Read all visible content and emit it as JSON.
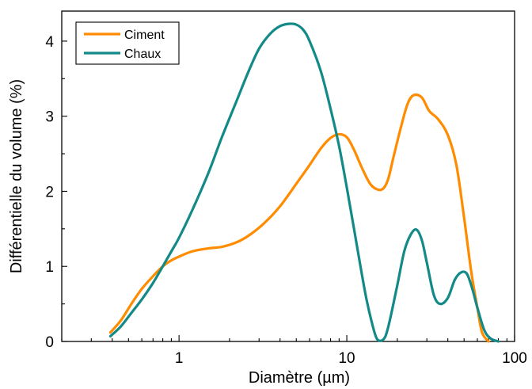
{
  "chart_data": {
    "type": "line",
    "xscale": "log",
    "xlabel": "Diamètre (µm)",
    "ylabel": "Différentielle du volume (%)",
    "xlim": [
      0.2,
      100
    ],
    "ylim": [
      0,
      4.4
    ],
    "xticks": [
      1,
      10,
      100
    ],
    "xtick_labels": [
      "1",
      "10",
      "100"
    ],
    "yticks": [
      0,
      1,
      2,
      3,
      4
    ],
    "ytick_labels": [
      "0",
      "1",
      "2",
      "3",
      "4"
    ],
    "legend_position": "top-left",
    "grid": false,
    "series": [
      {
        "name": "Ciment",
        "color": "#ff8c00",
        "x": [
          0.39,
          0.45,
          0.52,
          0.6,
          0.7,
          0.8,
          0.9,
          1.0,
          1.2,
          1.5,
          1.8,
          2.2,
          2.6,
          3.2,
          4.0,
          5.0,
          6.0,
          7.0,
          8.0,
          9.0,
          10.0,
          11.0,
          12.5,
          14.0,
          16.0,
          17.5,
          19.0,
          21.0,
          23.0,
          25.0,
          28.0,
          31.0,
          35.0,
          40.0,
          45.0,
          50.0,
          55.0,
          60.0,
          64.0,
          70.0
        ],
        "y": [
          0.12,
          0.28,
          0.5,
          0.7,
          0.87,
          1.0,
          1.08,
          1.13,
          1.2,
          1.24,
          1.26,
          1.32,
          1.41,
          1.57,
          1.8,
          2.1,
          2.35,
          2.57,
          2.71,
          2.76,
          2.72,
          2.56,
          2.28,
          2.08,
          2.02,
          2.14,
          2.46,
          2.85,
          3.16,
          3.28,
          3.25,
          3.07,
          2.96,
          2.75,
          2.35,
          1.65,
          0.95,
          0.45,
          0.12,
          0.0
        ]
      },
      {
        "name": "Chaux",
        "color": "#138a87",
        "x": [
          0.39,
          0.45,
          0.52,
          0.6,
          0.7,
          0.8,
          0.9,
          1.0,
          1.2,
          1.5,
          1.8,
          2.2,
          2.6,
          3.0,
          3.5,
          4.0,
          4.5,
          5.0,
          5.5,
          6.0,
          7.0,
          8.0,
          9.0,
          10.0,
          11.0,
          12.0,
          13.0,
          14.0,
          15.0,
          16.0,
          17.0,
          18.0,
          20.0,
          22.0,
          24.0,
          26.0,
          28.0,
          30.0,
          33.0,
          36.0,
          40.0,
          44.0,
          48.0,
          52.0,
          56.0,
          60.0,
          66.0,
          72.0,
          80.0
        ],
        "y": [
          0.07,
          0.2,
          0.38,
          0.56,
          0.78,
          1.0,
          1.2,
          1.38,
          1.75,
          2.25,
          2.72,
          3.2,
          3.6,
          3.9,
          4.1,
          4.2,
          4.23,
          4.22,
          4.15,
          4.0,
          3.6,
          3.1,
          2.6,
          2.05,
          1.52,
          1.03,
          0.6,
          0.28,
          0.05,
          0.01,
          0.07,
          0.27,
          0.75,
          1.2,
          1.42,
          1.49,
          1.35,
          1.05,
          0.62,
          0.5,
          0.58,
          0.82,
          0.92,
          0.9,
          0.7,
          0.45,
          0.15,
          0.04,
          0.0
        ]
      }
    ]
  }
}
